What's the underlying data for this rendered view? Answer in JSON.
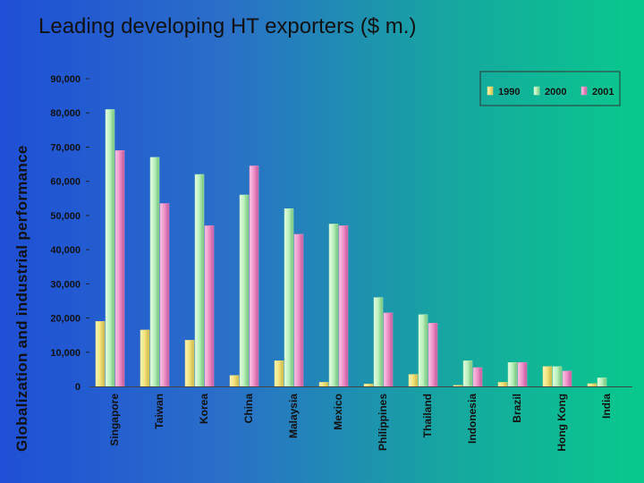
{
  "slide": {
    "side_title": "Globalization and industrial performance",
    "title": "Leading developing HT exporters ($ m.)"
  },
  "colors": {
    "series_1990": "#f2e27a",
    "series_2000": "#b8f0b8",
    "series_2001": "#ee8fc6"
  },
  "chart_data": {
    "type": "bar",
    "categories": [
      "Singapore",
      "Taiwan",
      "Korea",
      "China",
      "Malaysia",
      "Mexico",
      "Philippines",
      "Thailand",
      "Indonesia",
      "Brazil",
      "Hong Kong",
      "India"
    ],
    "series": [
      {
        "name": "1990",
        "values": [
          19000,
          16500,
          13500,
          3200,
          7500,
          1200,
          700,
          3500,
          300,
          1200,
          5800,
          800
        ]
      },
      {
        "name": "2000",
        "values": [
          81000,
          67000,
          62000,
          56000,
          52000,
          47500,
          26000,
          21000,
          7500,
          7000,
          5800,
          2500
        ]
      },
      {
        "name": "2001",
        "values": [
          69000,
          53500,
          47000,
          64500,
          44500,
          47000,
          21500,
          18500,
          5500,
          7000,
          4500,
          0
        ]
      }
    ],
    "ylim": [
      0,
      90000
    ],
    "yticks": [
      "0",
      "10,000",
      "20,000",
      "30,000",
      "40,000",
      "50,000",
      "60,000",
      "70,000",
      "80,000",
      "90,000"
    ],
    "legend_position": "top-right",
    "grid": false
  }
}
